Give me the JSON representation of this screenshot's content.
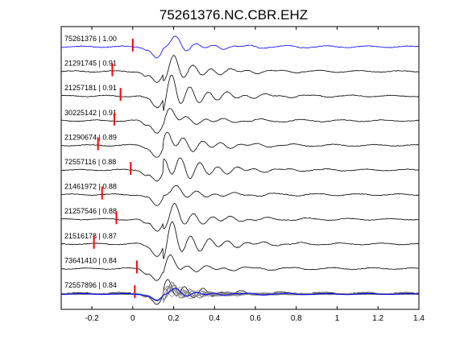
{
  "chart_data": {
    "type": "line",
    "title": "75261376.NC.CBR.EHZ",
    "xlabel": "",
    "ylabel": "",
    "xlim": [
      -0.35,
      1.4
    ],
    "x_ticks": [
      "-0.2",
      "0",
      "0.2",
      "0.4",
      "0.6",
      "0.8",
      "1",
      "1.2",
      "1.4"
    ],
    "x_tick_values": [
      -0.2,
      0,
      0.2,
      0.4,
      0.6,
      0.8,
      1.0,
      1.2,
      1.4
    ],
    "grid": false,
    "colors": {
      "reference_trace": "#0000ff",
      "correlated_trace": "#000000",
      "pick_marker": "#ff0000",
      "stack_trace": "#808080"
    },
    "series": [
      {
        "name": "75261376 | 1.00",
        "pick_time": 0.0,
        "reference": true
      },
      {
        "name": "21291745 | 0.91",
        "pick_time": -0.1
      },
      {
        "name": "21257181 | 0.91",
        "pick_time": -0.06
      },
      {
        "name": "30225142 | 0.91",
        "pick_time": -0.09
      },
      {
        "name": "21290674 | 0.89",
        "pick_time": -0.17
      },
      {
        "name": "72557116 | 0.88",
        "pick_time": -0.01
      },
      {
        "name": "21461972 | 0.88",
        "pick_time": -0.15
      },
      {
        "name": "21257546 | 0.88",
        "pick_time": -0.08
      },
      {
        "name": "21516178 | 0.87",
        "pick_time": -0.19
      },
      {
        "name": "73641410 | 0.84",
        "pick_time": 0.02
      },
      {
        "name": "72557896 | 0.84",
        "pick_time": 0.01
      }
    ],
    "stack": {
      "description_visible": false
    }
  }
}
